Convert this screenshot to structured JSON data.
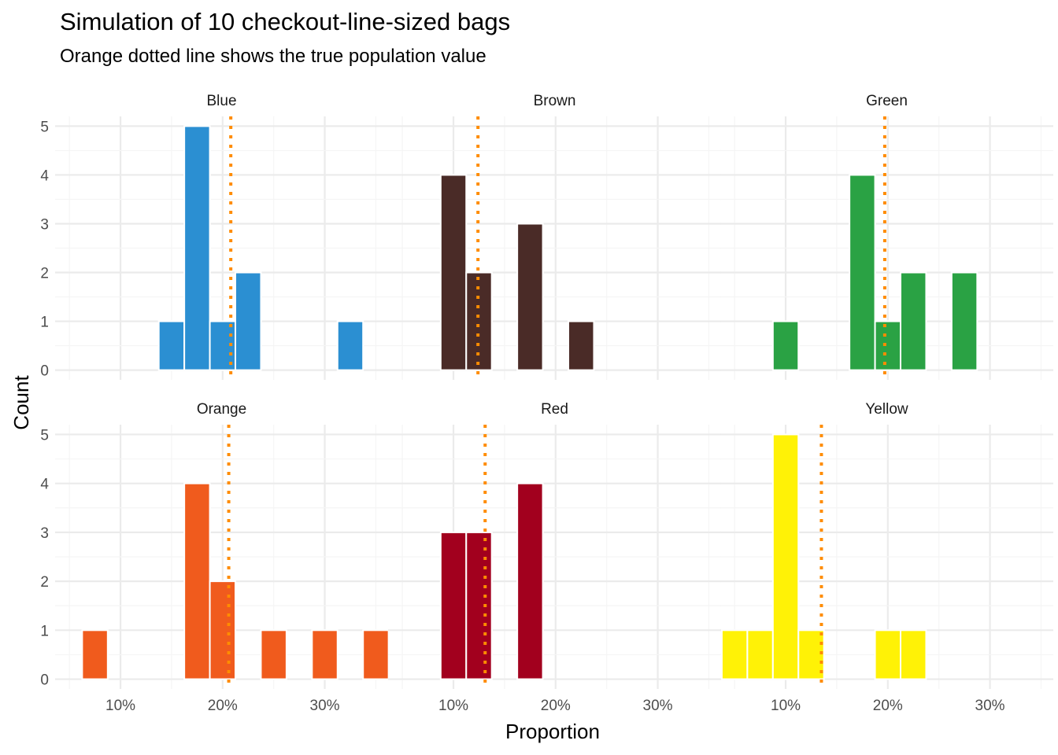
{
  "chart_data": {
    "type": "bar",
    "title": "Simulation of 10 checkout-line-sized bags",
    "subtitle": "Orange dotted line shows the true population value",
    "xlabel": "Proportion",
    "ylabel": "Count",
    "x_ticks": [
      "10%",
      "20%",
      "30%"
    ],
    "x_tick_values": [
      0.1,
      0.2,
      0.3
    ],
    "y_ticks": [
      0,
      1,
      2,
      3,
      4,
      5
    ],
    "xlim": [
      0.036,
      0.362
    ],
    "ylim": [
      -0.2,
      5.2
    ],
    "bin_width": 0.025,
    "grid": true,
    "reference_line": {
      "style": "dotted",
      "color": "#ff8c00"
    },
    "facets": [
      {
        "name": "Blue",
        "color": "#2b8fd2",
        "true_value": 0.208,
        "bins": [
          {
            "x": 0.15,
            "count": 1
          },
          {
            "x": 0.175,
            "count": 5
          },
          {
            "x": 0.2,
            "count": 1
          },
          {
            "x": 0.225,
            "count": 2
          },
          {
            "x": 0.325,
            "count": 1
          }
        ]
      },
      {
        "name": "Brown",
        "color": "#4a2b27",
        "true_value": 0.124,
        "bins": [
          {
            "x": 0.1,
            "count": 4
          },
          {
            "x": 0.125,
            "count": 2
          },
          {
            "x": 0.175,
            "count": 3
          },
          {
            "x": 0.225,
            "count": 1
          }
        ]
      },
      {
        "name": "Green",
        "color": "#2aa244",
        "true_value": 0.197,
        "bins": [
          {
            "x": 0.1,
            "count": 1
          },
          {
            "x": 0.175,
            "count": 4
          },
          {
            "x": 0.2,
            "count": 1
          },
          {
            "x": 0.225,
            "count": 2
          },
          {
            "x": 0.275,
            "count": 2
          }
        ]
      },
      {
        "name": "Orange",
        "color": "#f05b1d",
        "true_value": 0.206,
        "bins": [
          {
            "x": 0.075,
            "count": 1
          },
          {
            "x": 0.175,
            "count": 4
          },
          {
            "x": 0.2,
            "count": 2
          },
          {
            "x": 0.25,
            "count": 1
          },
          {
            "x": 0.3,
            "count": 1
          },
          {
            "x": 0.35,
            "count": 1
          }
        ]
      },
      {
        "name": "Red",
        "color": "#a2001e",
        "true_value": 0.131,
        "bins": [
          {
            "x": 0.1,
            "count": 3
          },
          {
            "x": 0.125,
            "count": 3
          },
          {
            "x": 0.175,
            "count": 4
          }
        ]
      },
      {
        "name": "Yellow",
        "color": "#fff206",
        "true_value": 0.135,
        "bins": [
          {
            "x": 0.05,
            "count": 1
          },
          {
            "x": 0.075,
            "count": 1
          },
          {
            "x": 0.1,
            "count": 5
          },
          {
            "x": 0.125,
            "count": 1
          },
          {
            "x": 0.2,
            "count": 1
          },
          {
            "x": 0.225,
            "count": 1
          }
        ]
      }
    ]
  }
}
